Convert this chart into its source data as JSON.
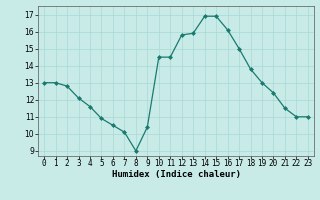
{
  "x": [
    0,
    1,
    2,
    3,
    4,
    5,
    6,
    7,
    8,
    9,
    10,
    11,
    12,
    13,
    14,
    15,
    16,
    17,
    18,
    19,
    20,
    21,
    22,
    23
  ],
  "y": [
    13,
    13,
    12.8,
    12.1,
    11.6,
    10.9,
    10.5,
    10.1,
    9.0,
    10.4,
    14.5,
    14.5,
    15.8,
    15.9,
    16.9,
    16.9,
    16.1,
    15.0,
    13.8,
    13.0,
    12.4,
    11.5,
    11.0,
    11.0
  ],
  "line_color": "#1a7a6e",
  "marker": "D",
  "marker_size": 2.0,
  "bg_color": "#c8ebe8",
  "grid_color": "#a8d8d4",
  "xlabel": "Humidex (Indice chaleur)",
  "xlim": [
    -0.5,
    23.5
  ],
  "ylim": [
    8.7,
    17.5
  ],
  "yticks": [
    9,
    10,
    11,
    12,
    13,
    14,
    15,
    16,
    17
  ],
  "xticks": [
    0,
    1,
    2,
    3,
    4,
    5,
    6,
    7,
    8,
    9,
    10,
    11,
    12,
    13,
    14,
    15,
    16,
    17,
    18,
    19,
    20,
    21,
    22,
    23
  ],
  "label_fontsize": 6.5,
  "tick_fontsize": 5.5
}
